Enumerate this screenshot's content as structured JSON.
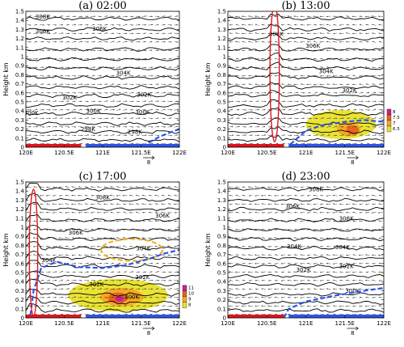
{
  "chart_data": [
    {
      "type": "contour",
      "title": "(a)  02:00",
      "ylabel": "Height km",
      "x_ticks": [
        "120E",
        "120.5E",
        "121E",
        "121.5E",
        "122E"
      ],
      "y_ticks": [
        "0",
        "0.1",
        "0.2",
        "0.3",
        "0.4",
        "0.5",
        "0.6",
        "0.7",
        "0.8",
        "0.9",
        "1",
        "1.1",
        "1.2",
        "1.3",
        "1.4",
        "1.5"
      ],
      "xlim": [
        120,
        122
      ],
      "ylim": [
        0,
        1.5
      ],
      "contour_labels": [
        {
          "text": "308K",
          "x": 120.22,
          "y": 1.44
        },
        {
          "text": "306K",
          "x": 120.22,
          "y": 1.28
        },
        {
          "text": "306K",
          "x": 120.96,
          "y": 1.31
        },
        {
          "text": "304K",
          "x": 121.27,
          "y": 0.82
        },
        {
          "text": "302K",
          "x": 121.54,
          "y": 0.58
        },
        {
          "text": "302K",
          "x": 120.57,
          "y": 0.55
        },
        {
          "text": "300K",
          "x": 120.88,
          "y": 0.4
        },
        {
          "text": "300K",
          "x": 121.52,
          "y": 0.39
        },
        {
          "text": "300K",
          "x": 120.07,
          "y": 0.38
        },
        {
          "text": "298K",
          "x": 120.81,
          "y": 0.2
        },
        {
          "text": "298K",
          "x": 121.42,
          "y": 0.17
        }
      ],
      "shading": [],
      "boundary_dashed": [
        [
          121.6,
          0.05
        ],
        [
          121.75,
          0.12
        ],
        [
          121.9,
          0.17
        ],
        [
          122,
          0.2
        ]
      ],
      "surface_bar": {
        "red": [
          120,
          120.72
        ],
        "blue": [
          120.78,
          122
        ]
      },
      "ref_vector": "8"
    },
    {
      "type": "contour",
      "title": "(b)  13:00",
      "ylabel": "Height km",
      "x_ticks": [
        "120E",
        "120.5E",
        "121E",
        "121.5E",
        "122E"
      ],
      "y_ticks": [
        "0",
        "0.1",
        "0.2",
        "0.3",
        "0.4",
        "0.5",
        "0.6",
        "0.7",
        "0.8",
        "0.9",
        "1",
        "1.1",
        "1.2",
        "1.3",
        "1.4",
        "1.5"
      ],
      "xlim": [
        120,
        122
      ],
      "ylim": [
        0,
        1.5
      ],
      "contour_labels": [
        {
          "text": "308K",
          "x": 120.62,
          "y": 1.25
        },
        {
          "text": "306K",
          "x": 121.09,
          "y": 1.12
        },
        {
          "text": "304K",
          "x": 121.26,
          "y": 0.84
        },
        {
          "text": "302K",
          "x": 121.56,
          "y": 0.63
        }
      ],
      "shading": [
        {
          "center": [
            121.45,
            0.25
          ],
          "radius": [
            0.45,
            0.16
          ],
          "level": 6.5
        },
        {
          "center": [
            121.55,
            0.2
          ],
          "radius": [
            0.15,
            0.08
          ],
          "level": 7
        },
        {
          "center": [
            121.6,
            0.19
          ],
          "radius": [
            0.08,
            0.05
          ],
          "level": 7.5
        }
      ],
      "colorbar": {
        "labels": [
          "8",
          "7.5",
          "7",
          "6.5"
        ],
        "colors": [
          "#c81e96",
          "#e8601c",
          "#f5a623",
          "#e8e12a"
        ]
      },
      "boundary_dashed": [
        [
          120.8,
          0.03
        ],
        [
          121.0,
          0.18
        ],
        [
          121.2,
          0.24
        ],
        [
          121.5,
          0.28
        ],
        [
          121.75,
          0.3
        ],
        [
          122,
          0.28
        ]
      ],
      "red_ellipse": {
        "center": [
          120.6,
          0.82
        ],
        "half_width": 0.06,
        "half_height": 0.76
      },
      "surface_bar": {
        "red": [
          120,
          120.72
        ],
        "blue": [
          120.78,
          122
        ]
      },
      "ref_vector": "8"
    },
    {
      "type": "contour",
      "title": "(c)  17:00",
      "ylabel": "Height km",
      "x_ticks": [
        "120E",
        "120.5E",
        "121E",
        "121.5E",
        "122E"
      ],
      "y_ticks": [
        "0",
        "0.1",
        "0.2",
        "0.3",
        "0.4",
        "0.5",
        "0.6",
        "0.7",
        "0.8",
        "0.9",
        "1",
        "1.1",
        "1.2",
        "1.3",
        "1.4",
        "1.5"
      ],
      "xlim": [
        120,
        122
      ],
      "ylim": [
        0,
        1.5
      ],
      "contour_labels": [
        {
          "text": "308K",
          "x": 121.0,
          "y": 1.33
        },
        {
          "text": "306K",
          "x": 121.78,
          "y": 1.13
        },
        {
          "text": "306K",
          "x": 120.65,
          "y": 0.94
        },
        {
          "text": "304K",
          "x": 121.53,
          "y": 0.77
        },
        {
          "text": "304K",
          "x": 120.3,
          "y": 0.64
        },
        {
          "text": "302K",
          "x": 121.52,
          "y": 0.45
        },
        {
          "text": "302K",
          "x": 120.92,
          "y": 0.37
        },
        {
          "text": "300K",
          "x": 121.38,
          "y": 0.23
        }
      ],
      "shading": [
        {
          "center": [
            121.2,
            0.25
          ],
          "radius": [
            0.65,
            0.18
          ],
          "level": 8
        },
        {
          "center": [
            121.25,
            0.23
          ],
          "radius": [
            0.28,
            0.1
          ],
          "level": 9
        },
        {
          "center": [
            121.2,
            0.22
          ],
          "radius": [
            0.13,
            0.06
          ],
          "level": 10
        },
        {
          "center": [
            121.22,
            0.21
          ],
          "radius": [
            0.06,
            0.03
          ],
          "level": 11
        }
      ],
      "colorbar": {
        "labels": [
          "11",
          "10",
          "9",
          "8"
        ],
        "colors": [
          "#c81e96",
          "#e8601c",
          "#f5a623",
          "#e8e12a"
        ]
      },
      "boundary_dashed": [
        [
          120.06,
          0.03
        ],
        [
          120.1,
          0.3
        ],
        [
          120.2,
          0.55
        ],
        [
          120.4,
          0.62
        ],
        [
          120.7,
          0.56
        ],
        [
          121.0,
          0.55
        ],
        [
          121.3,
          0.58
        ],
        [
          121.6,
          0.65
        ],
        [
          121.8,
          0.71
        ],
        [
          122,
          0.75
        ]
      ],
      "orange_ellipse": {
        "center": [
          121.38,
          0.75
        ],
        "half_width": 0.4,
        "half_height": 0.12
      },
      "red_ellipse": {
        "center": [
          120.1,
          0.72
        ],
        "half_width": 0.055,
        "half_height": 0.7
      },
      "surface_bar": {
        "red": [
          120,
          120.72
        ],
        "blue": [
          120.78,
          122
        ]
      },
      "ref_vector": "8"
    },
    {
      "type": "contour",
      "title": "(d)  23:00",
      "ylabel": "Height km",
      "x_ticks": [
        "120E",
        "120.5E",
        "121E",
        "121.5E",
        "122E"
      ],
      "y_ticks": [
        "0",
        "0.1",
        "0.2",
        "0.3",
        "0.4",
        "0.5",
        "0.6",
        "0.7",
        "0.8",
        "0.9",
        "1",
        "1.1",
        "1.2",
        "1.3",
        "1.4",
        "1.5"
      ],
      "xlim": [
        120,
        122
      ],
      "ylim": [
        0,
        1.5
      ],
      "contour_labels": [
        {
          "text": "308K",
          "x": 121.13,
          "y": 1.42
        },
        {
          "text": "306K",
          "x": 120.83,
          "y": 1.23
        },
        {
          "text": "306K",
          "x": 121.52,
          "y": 1.1
        },
        {
          "text": "304K",
          "x": 120.85,
          "y": 0.79
        },
        {
          "text": "304K",
          "x": 121.47,
          "y": 0.78
        },
        {
          "text": "302K",
          "x": 120.97,
          "y": 0.53
        },
        {
          "text": "302K",
          "x": 121.52,
          "y": 0.57
        },
        {
          "text": "300K",
          "x": 121.6,
          "y": 0.3
        }
      ],
      "shading": [],
      "boundary_dashed": [
        [
          120.72,
          0.0
        ],
        [
          120.78,
          0.1
        ],
        [
          121.0,
          0.18
        ],
        [
          121.4,
          0.25
        ],
        [
          121.75,
          0.3
        ],
        [
          122,
          0.33
        ]
      ],
      "surface_bar": {
        "red": [
          120,
          120.72
        ],
        "blue": [
          120.78,
          122
        ]
      },
      "ref_vector": "8"
    }
  ]
}
